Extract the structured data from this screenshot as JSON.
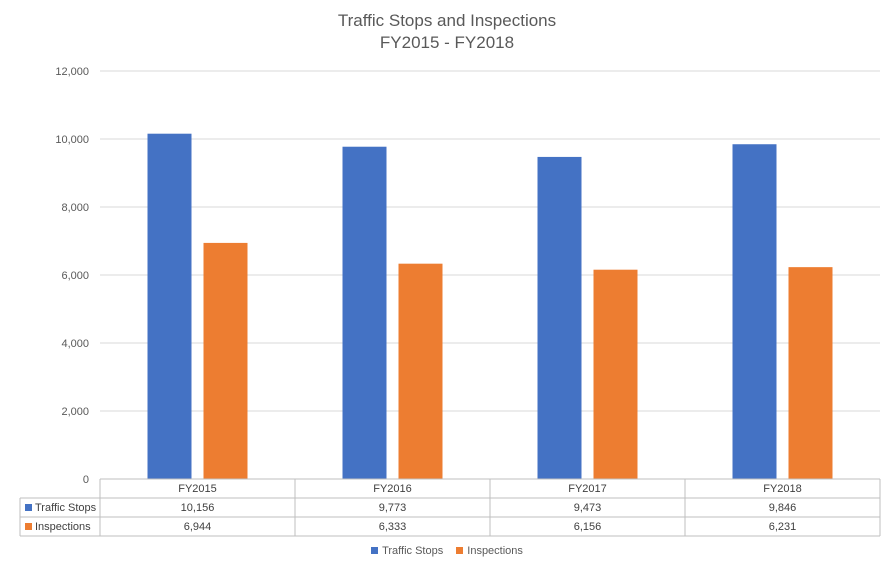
{
  "chart_data": {
    "type": "bar",
    "title": "Traffic Stops and Inspections",
    "subtitle": "FY2015 - FY2018",
    "categories": [
      "FY2015",
      "FY2016",
      "FY2017",
      "FY2018"
    ],
    "series": [
      {
        "name": "Traffic Stops",
        "color": "#4472C4",
        "values": [
          10156,
          9773,
          9473,
          9846
        ],
        "labels": [
          "10,156",
          "9,773",
          "9,473",
          "9,846"
        ]
      },
      {
        "name": "Inspections",
        "color": "#ED7D31",
        "values": [
          6944,
          6333,
          6156,
          6231
        ],
        "labels": [
          "6,944",
          "6,333",
          "6,156",
          "6,231"
        ]
      }
    ],
    "ylim": [
      0,
      12000
    ],
    "yticks": [
      0,
      2000,
      4000,
      6000,
      8000,
      10000,
      12000
    ],
    "ytick_labels": [
      "0",
      "2,000",
      "4,000",
      "6,000",
      "8,000",
      "10,000",
      "12,000"
    ],
    "grid": true,
    "legend": "bottom",
    "data_table": true
  }
}
